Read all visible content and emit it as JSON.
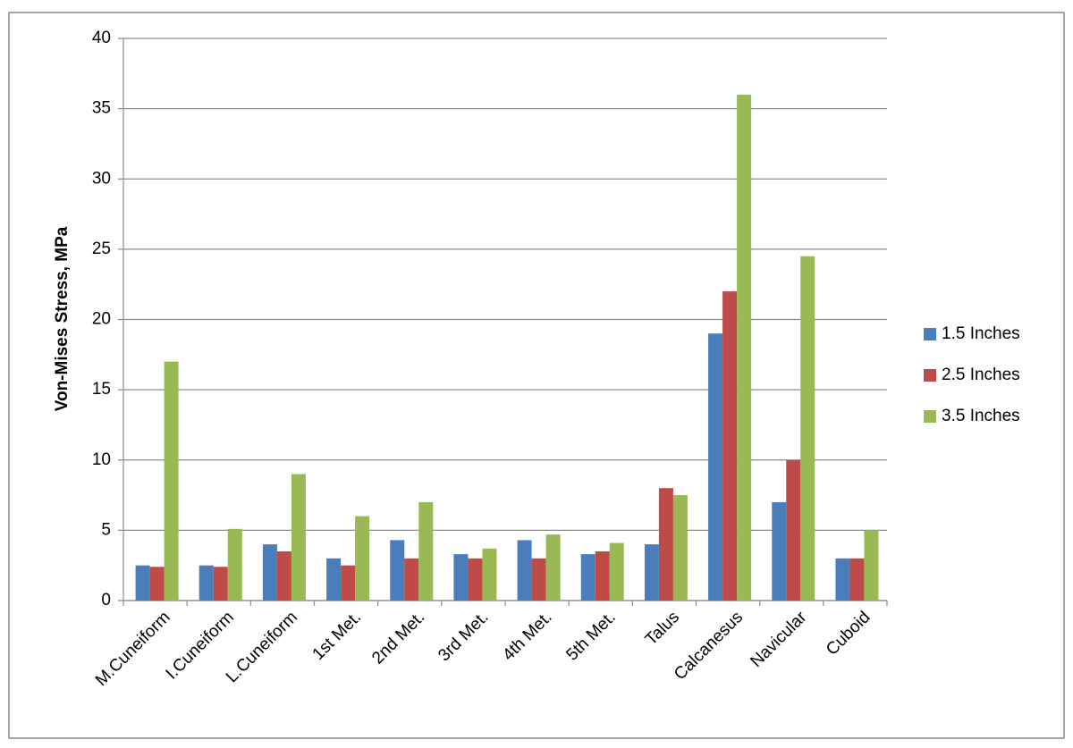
{
  "chart_data": {
    "type": "bar",
    "y_label": "Von-Mises Stress, MPa",
    "categories": [
      "M.Cuneiform",
      "I.Cuneiform",
      "L.Cuneiform",
      "1st Met.",
      "2nd Met.",
      "3rd Met.",
      "4th Met.",
      "5th Met.",
      "Talus",
      "Calcanesus",
      "Navicular",
      "Cuboid"
    ],
    "series": [
      {
        "name": "1.5 Inches",
        "color": "#4a7ebb",
        "values": [
          2.5,
          2.5,
          4,
          3,
          4.3,
          3.3,
          4.3,
          3.3,
          4,
          19,
          7,
          3
        ]
      },
      {
        "name": "2.5 Inches",
        "color": "#be4b48",
        "values": [
          2.4,
          2.4,
          3.5,
          2.5,
          3,
          3,
          3,
          3.5,
          8,
          22,
          10,
          3
        ]
      },
      {
        "name": "3.5 Inches",
        "color": "#98b954",
        "values": [
          17,
          5.1,
          9,
          6,
          7,
          3.7,
          4.7,
          4.1,
          7.5,
          36,
          24.5,
          5
        ]
      }
    ],
    "ylim": [
      0,
      40
    ],
    "yticks": [
      0,
      5,
      10,
      15,
      20,
      25,
      30,
      35,
      40
    ],
    "grid": true
  }
}
